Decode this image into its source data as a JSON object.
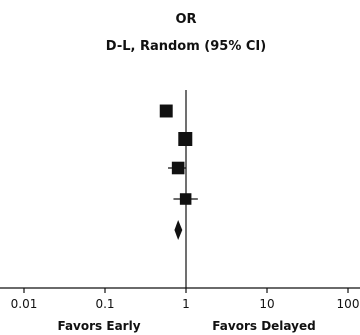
{
  "chart_data": {
    "type": "forest",
    "title": "OR",
    "subtitle": "D-L, Random (95% CI)",
    "x_scale": "log",
    "xlim": [
      0.01,
      100
    ],
    "x_ticks": [
      "0.01",
      "0.1",
      "1",
      "10",
      "100"
    ],
    "reference_line": 1,
    "favors_left": "Favors Early",
    "favors_right": "Favors Delayed",
    "studies": [
      {
        "or": 0.57,
        "ci": [
          0.5,
          0.67
        ],
        "weight": 0.85
      },
      {
        "or": 0.98,
        "ci": [
          0.94,
          1.03
        ],
        "weight": 1.0
      },
      {
        "or": 0.8,
        "ci": [
          0.6,
          1.0
        ],
        "weight": 0.8
      },
      {
        "or": 0.99,
        "ci": [
          0.7,
          1.4
        ],
        "weight": 0.65
      }
    ],
    "pooled": {
      "or": 0.8,
      "ci": [
        0.72,
        0.9
      ]
    }
  },
  "colors": {
    "ink": "#111111",
    "background": "#ffffff"
  }
}
